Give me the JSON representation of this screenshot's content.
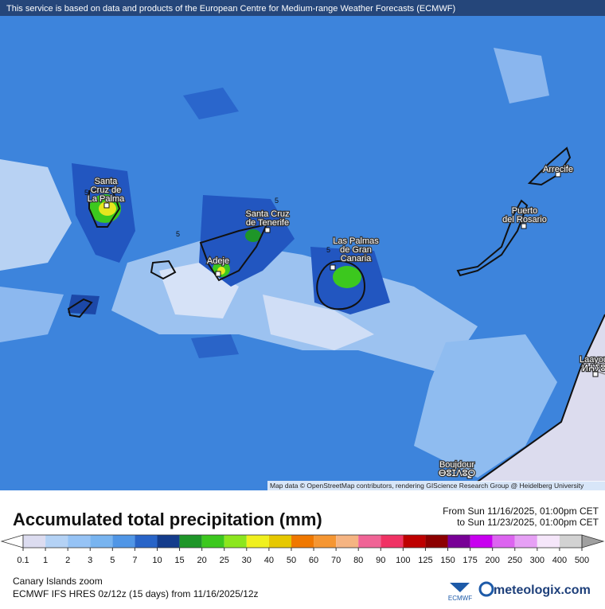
{
  "banner": "This service is based on data and products of the European Centre for Medium-range Weather Forecasts (ECMWF)",
  "cities": [
    {
      "lines": [
        "Santa",
        "Cruz de",
        "La Palma"
      ]
    },
    {
      "lines": [
        "Santa Cruz",
        "de Tenerife"
      ]
    },
    {
      "lines": [
        "Adeje"
      ]
    },
    {
      "lines": [
        "Las Palmas",
        "de Gran",
        "Canaria"
      ]
    },
    {
      "lines": [
        "Puerto",
        "del Rosario"
      ]
    },
    {
      "lines": [
        "Arrecife"
      ]
    },
    {
      "lines": [
        "Laayou",
        "ⵍⵄⵢⵓ"
      ]
    },
    {
      "lines": [
        "Boujdour",
        "ⴱⵓⵊⴷⵓⵔ"
      ]
    }
  ],
  "contour_labels": [
    5,
    5,
    5,
    5
  ],
  "attribution": "Map data © OpenStreetMap contributors, rendering GIScience Research Group @ Heidelberg University",
  "legend": {
    "title": "Accumulated total precipitation (mm)",
    "from": "From Sun 11/16/2025, 01:00pm CET",
    "to": "to Sun 11/23/2025, 01:00pm CET",
    "ticks": [
      0.1,
      1,
      2,
      3,
      5,
      7,
      10,
      15,
      20,
      25,
      30,
      40,
      50,
      60,
      70,
      80,
      90,
      100,
      125,
      150,
      175,
      200,
      250,
      300,
      400,
      500
    ],
    "colors": [
      "#dcdcf0",
      "#b4d2f5",
      "#96c3f5",
      "#78b4f0",
      "#5096e6",
      "#2864c8",
      "#143c8c",
      "#1e9628",
      "#3cc81e",
      "#8ce61e",
      "#f0f01e",
      "#e6c800",
      "#f07800",
      "#f59632",
      "#f5b482",
      "#f06496",
      "#f03264",
      "#be0000",
      "#8c0000",
      "#780096",
      "#c800f0",
      "#dc64f0",
      "#e6a0f5",
      "#f5e6fa",
      "#d2d2d2"
    ],
    "under_color": "#ffffff",
    "over_color": "#a0a0a0"
  },
  "region": "Canary Islands zoom",
  "model": "ECMWF IFS HRES 0z/12z (15 days) from 11/16/2025/12z",
  "logos": {
    "ecmwf": "ECMWF",
    "meteologix": "meteologix.com"
  }
}
